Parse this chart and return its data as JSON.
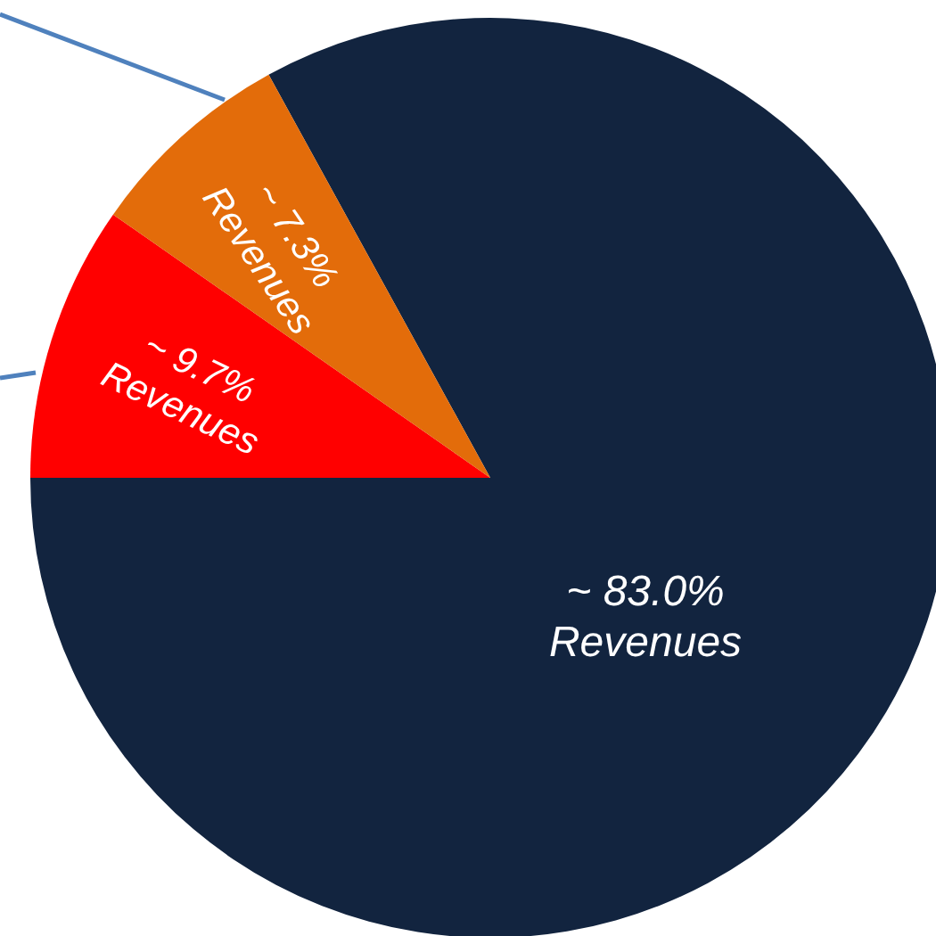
{
  "chart_data": {
    "type": "pie",
    "categories": [
      "Revenues",
      "Revenues",
      "Revenues"
    ],
    "values": [
      83.0,
      9.7,
      7.3
    ],
    "colors": [
      "#12243f",
      "#ff0000",
      "#e36c0a"
    ],
    "value_labels": [
      "~ 83.0%",
      "~ 9.7%",
      "~ 7.3%"
    ]
  }
}
